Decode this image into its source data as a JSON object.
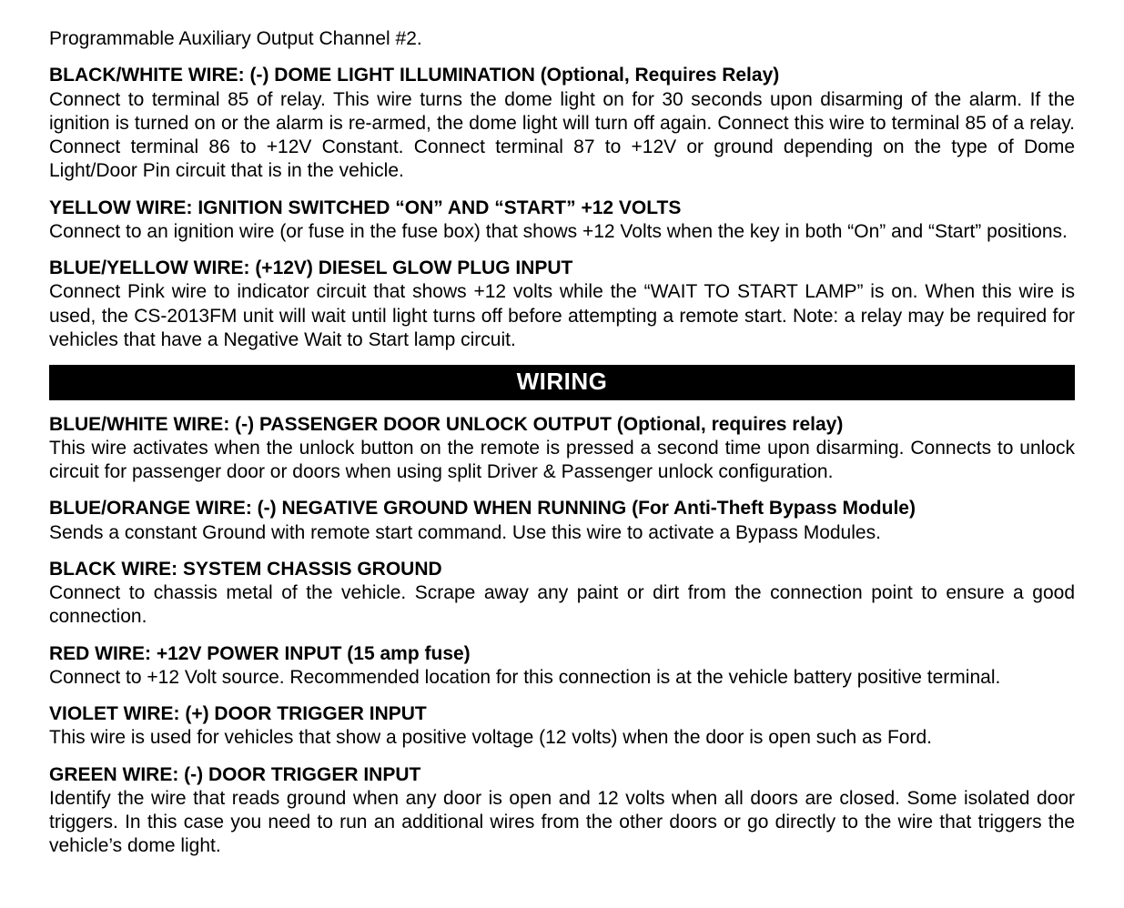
{
  "intro": "Programmable Auxiliary Output Channel #2.",
  "sections_top": [
    {
      "heading": "BLACK/WHITE WIRE: (-) DOME LIGHT ILLUMINATION (Optional, Requires Relay)",
      "body": "Connect to terminal 85 of relay.  This wire turns the dome light on for 30 seconds upon disarming of the alarm.  If the ignition is turned on or the alarm is re-armed, the dome light will turn off again. Connect this wire to terminal 85 of a relay.  Connect terminal 86 to +12V Constant.  Connect terminal 87 to +12V or ground depending on the type of Dome Light/Door Pin circuit that is in the vehicle."
    },
    {
      "heading": "YELLOW WIRE: IGNITION SWITCHED “ON” AND “START” +12 VOLTS",
      "body": "Connect to an ignition wire (or fuse in the fuse box) that shows +12 Volts when the key in both “On” and “Start” positions."
    },
    {
      "heading": "BLUE/YELLOW WIRE: (+12V) DIESEL GLOW PLUG INPUT",
      "body": "Connect Pink wire to indicator circuit that shows  +12 volts while the “WAIT TO START LAMP” is on.  When this wire is used, the CS-2013FM unit will wait until light turns off before attempting a remote start.  Note: a relay may be required for vehicles that have a Negative Wait to Start lamp circuit."
    }
  ],
  "banner": "WIRING",
  "sections_bottom": [
    {
      "heading": "BLUE/WHITE WIRE: (-) PASSENGER DOOR UNLOCK OUTPUT (Optional, requires relay)",
      "body": "This wire activates when the unlock button on the remote is pressed a second time upon disarming.  Connects to unlock circuit for passenger door or doors when using split Driver & Passenger unlock configuration."
    },
    {
      "heading": "BLUE/ORANGE WIRE: (-) NEGATIVE GROUND WHEN RUNNING (For Anti-Theft Bypass Module)",
      "body": "Sends a constant Ground with remote start command.  Use this wire to activate a Bypass Modules."
    },
    {
      "heading": "BLACK WIRE: SYSTEM CHASSIS GROUND",
      "body": "Connect to chassis metal of the vehicle.  Scrape away any paint or dirt from the connection point to ensure a good connection."
    },
    {
      "heading": "RED WIRE: +12V POWER INPUT (15 amp fuse)",
      "body": "Connect to +12 Volt source.   Recommended location for this connection is at the vehicle battery positive terminal."
    },
    {
      "heading": "VIOLET WIRE: (+) DOOR TRIGGER INPUT",
      "body": "This wire is used for vehicles that show a positive voltage (12 volts) when the door is open such as Ford."
    },
    {
      "heading": "GREEN WIRE: (-) DOOR TRIGGER INPUT",
      "body": "Identify the wire that reads ground when any door is open and 12 volts when all doors are closed.  Some isolated door triggers.  In this case you need to run an additional wires from the other doors or go directly to the wire that triggers the vehicle’s dome light."
    }
  ]
}
